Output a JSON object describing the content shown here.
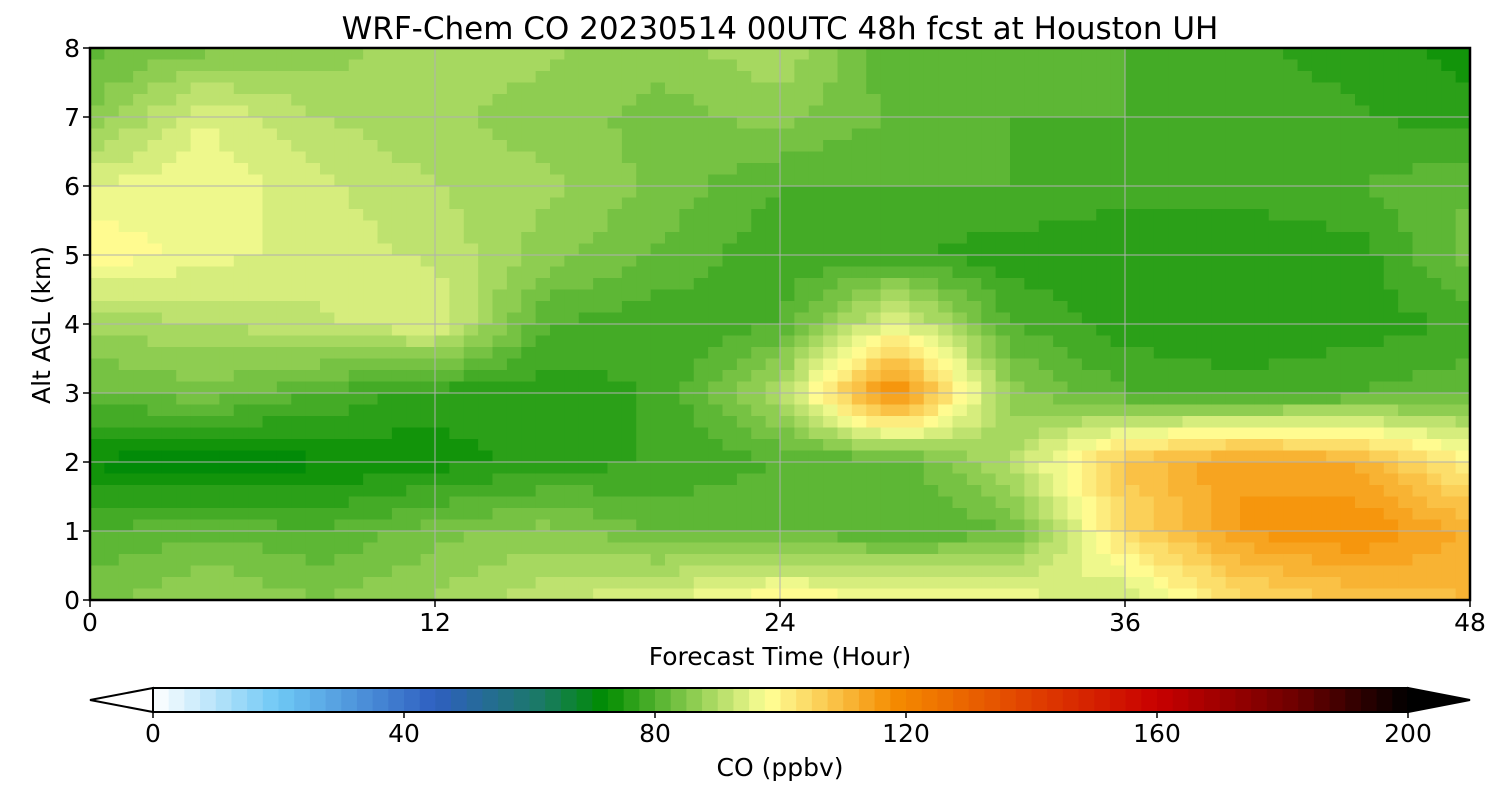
{
  "title": "WRF-Chem CO  20230514 00UTC 48h fcst at Houston UH",
  "chart_data": {
    "type": "heatmap",
    "title": "WRF-Chem CO  20230514 00UTC 48h fcst at Houston UH",
    "xlabel": "Forecast Time (Hour)",
    "ylabel": "Alt AGL (km)",
    "xlim": [
      0,
      48
    ],
    "ylim": [
      0,
      8
    ],
    "xticks": [
      "0",
      "12",
      "24",
      "36",
      "48"
    ],
    "yticks": [
      "0",
      "1",
      "2",
      "3",
      "4",
      "5",
      "6",
      "7",
      "8"
    ],
    "grid": true,
    "x": [
      0,
      4,
      8,
      12,
      16,
      20,
      24,
      28,
      32,
      36,
      40,
      44,
      48
    ],
    "y": [
      0,
      1,
      2,
      3,
      4,
      5,
      6,
      7,
      8
    ],
    "z": [
      [
        84,
        88,
        85,
        88,
        92,
        95,
        100,
        98,
        97,
        92,
        104,
        108,
        110
      ],
      [
        80,
        82,
        80,
        84,
        86,
        82,
        82,
        80,
        82,
        104,
        115,
        118,
        112
      ],
      [
        72,
        70,
        72,
        74,
        76,
        78,
        80,
        80,
        90,
        108,
        115,
        112,
        100
      ],
      [
        82,
        84,
        80,
        76,
        76,
        78,
        90,
        120,
        86,
        80,
        78,
        80,
        82
      ],
      [
        88,
        90,
        92,
        95,
        80,
        78,
        80,
        96,
        80,
        76,
        76,
        76,
        78
      ],
      [
        100,
        96,
        94,
        92,
        86,
        82,
        78,
        78,
        76,
        76,
        76,
        76,
        84
      ],
      [
        95,
        97,
        93,
        90,
        88,
        84,
        80,
        80,
        80,
        78,
        78,
        80,
        82
      ],
      [
        85,
        95,
        90,
        88,
        86,
        84,
        86,
        82,
        80,
        80,
        80,
        78,
        76
      ],
      [
        82,
        84,
        86,
        90,
        88,
        86,
        90,
        80,
        82,
        80,
        78,
        76,
        74
      ]
    ],
    "colorbar": {
      "label": "CO  (ppbv)",
      "min": 0,
      "max": 200,
      "ticks": [
        "0",
        "40",
        "80",
        "120",
        "160",
        "200"
      ],
      "extend": "both",
      "stops": [
        {
          "v": 0,
          "c": "#ffffff"
        },
        {
          "v": 20,
          "c": "#6ec8f5"
        },
        {
          "v": 45,
          "c": "#2e5fc0"
        },
        {
          "v": 62,
          "c": "#1a7a64"
        },
        {
          "v": 72,
          "c": "#008c00"
        },
        {
          "v": 85,
          "c": "#82c84a"
        },
        {
          "v": 98,
          "c": "#ffff96"
        },
        {
          "v": 118,
          "c": "#f58c00"
        },
        {
          "v": 140,
          "c": "#e04000"
        },
        {
          "v": 160,
          "c": "#c80000"
        },
        {
          "v": 182,
          "c": "#6e0000"
        },
        {
          "v": 200,
          "c": "#000000"
        }
      ]
    }
  }
}
